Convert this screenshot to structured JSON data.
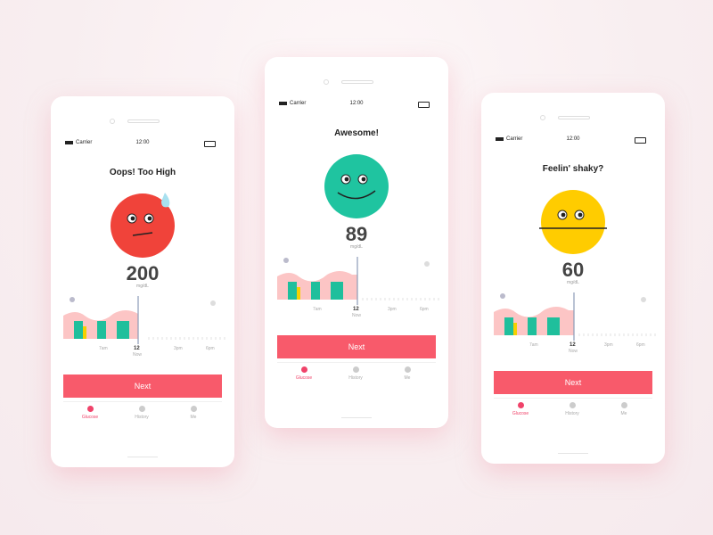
{
  "phones": [
    {
      "status": {
        "carrier": "Carrier",
        "time": "12:00"
      },
      "title": "Oops! Too High",
      "reading": {
        "value": "200",
        "unit": "mg/dL"
      },
      "timeline": {
        "labels": [
          "7am",
          "12",
          "3pm",
          "6pm"
        ],
        "now": "Now"
      },
      "button": "Next",
      "tabs": [
        "Glucose",
        "History",
        "Me"
      ]
    },
    {
      "status": {
        "carrier": "Carrier",
        "time": "12:00"
      },
      "title": "Awesome!",
      "reading": {
        "value": "89",
        "unit": "mg/dL"
      },
      "timeline": {
        "labels": [
          "7am",
          "12",
          "3pm",
          "6pm"
        ],
        "now": "Now"
      },
      "button": "Next",
      "tabs": [
        "Glucose",
        "History",
        "Me"
      ]
    },
    {
      "status": {
        "carrier": "Carrier",
        "time": "12:00"
      },
      "title": "Feelin' shaky?",
      "reading": {
        "value": "60",
        "unit": "mg/dL"
      },
      "timeline": {
        "labels": [
          "7am",
          "12",
          "3pm",
          "6pm"
        ],
        "now": "Now"
      },
      "button": "Next",
      "tabs": [
        "Glucose",
        "History",
        "Me"
      ]
    }
  ]
}
